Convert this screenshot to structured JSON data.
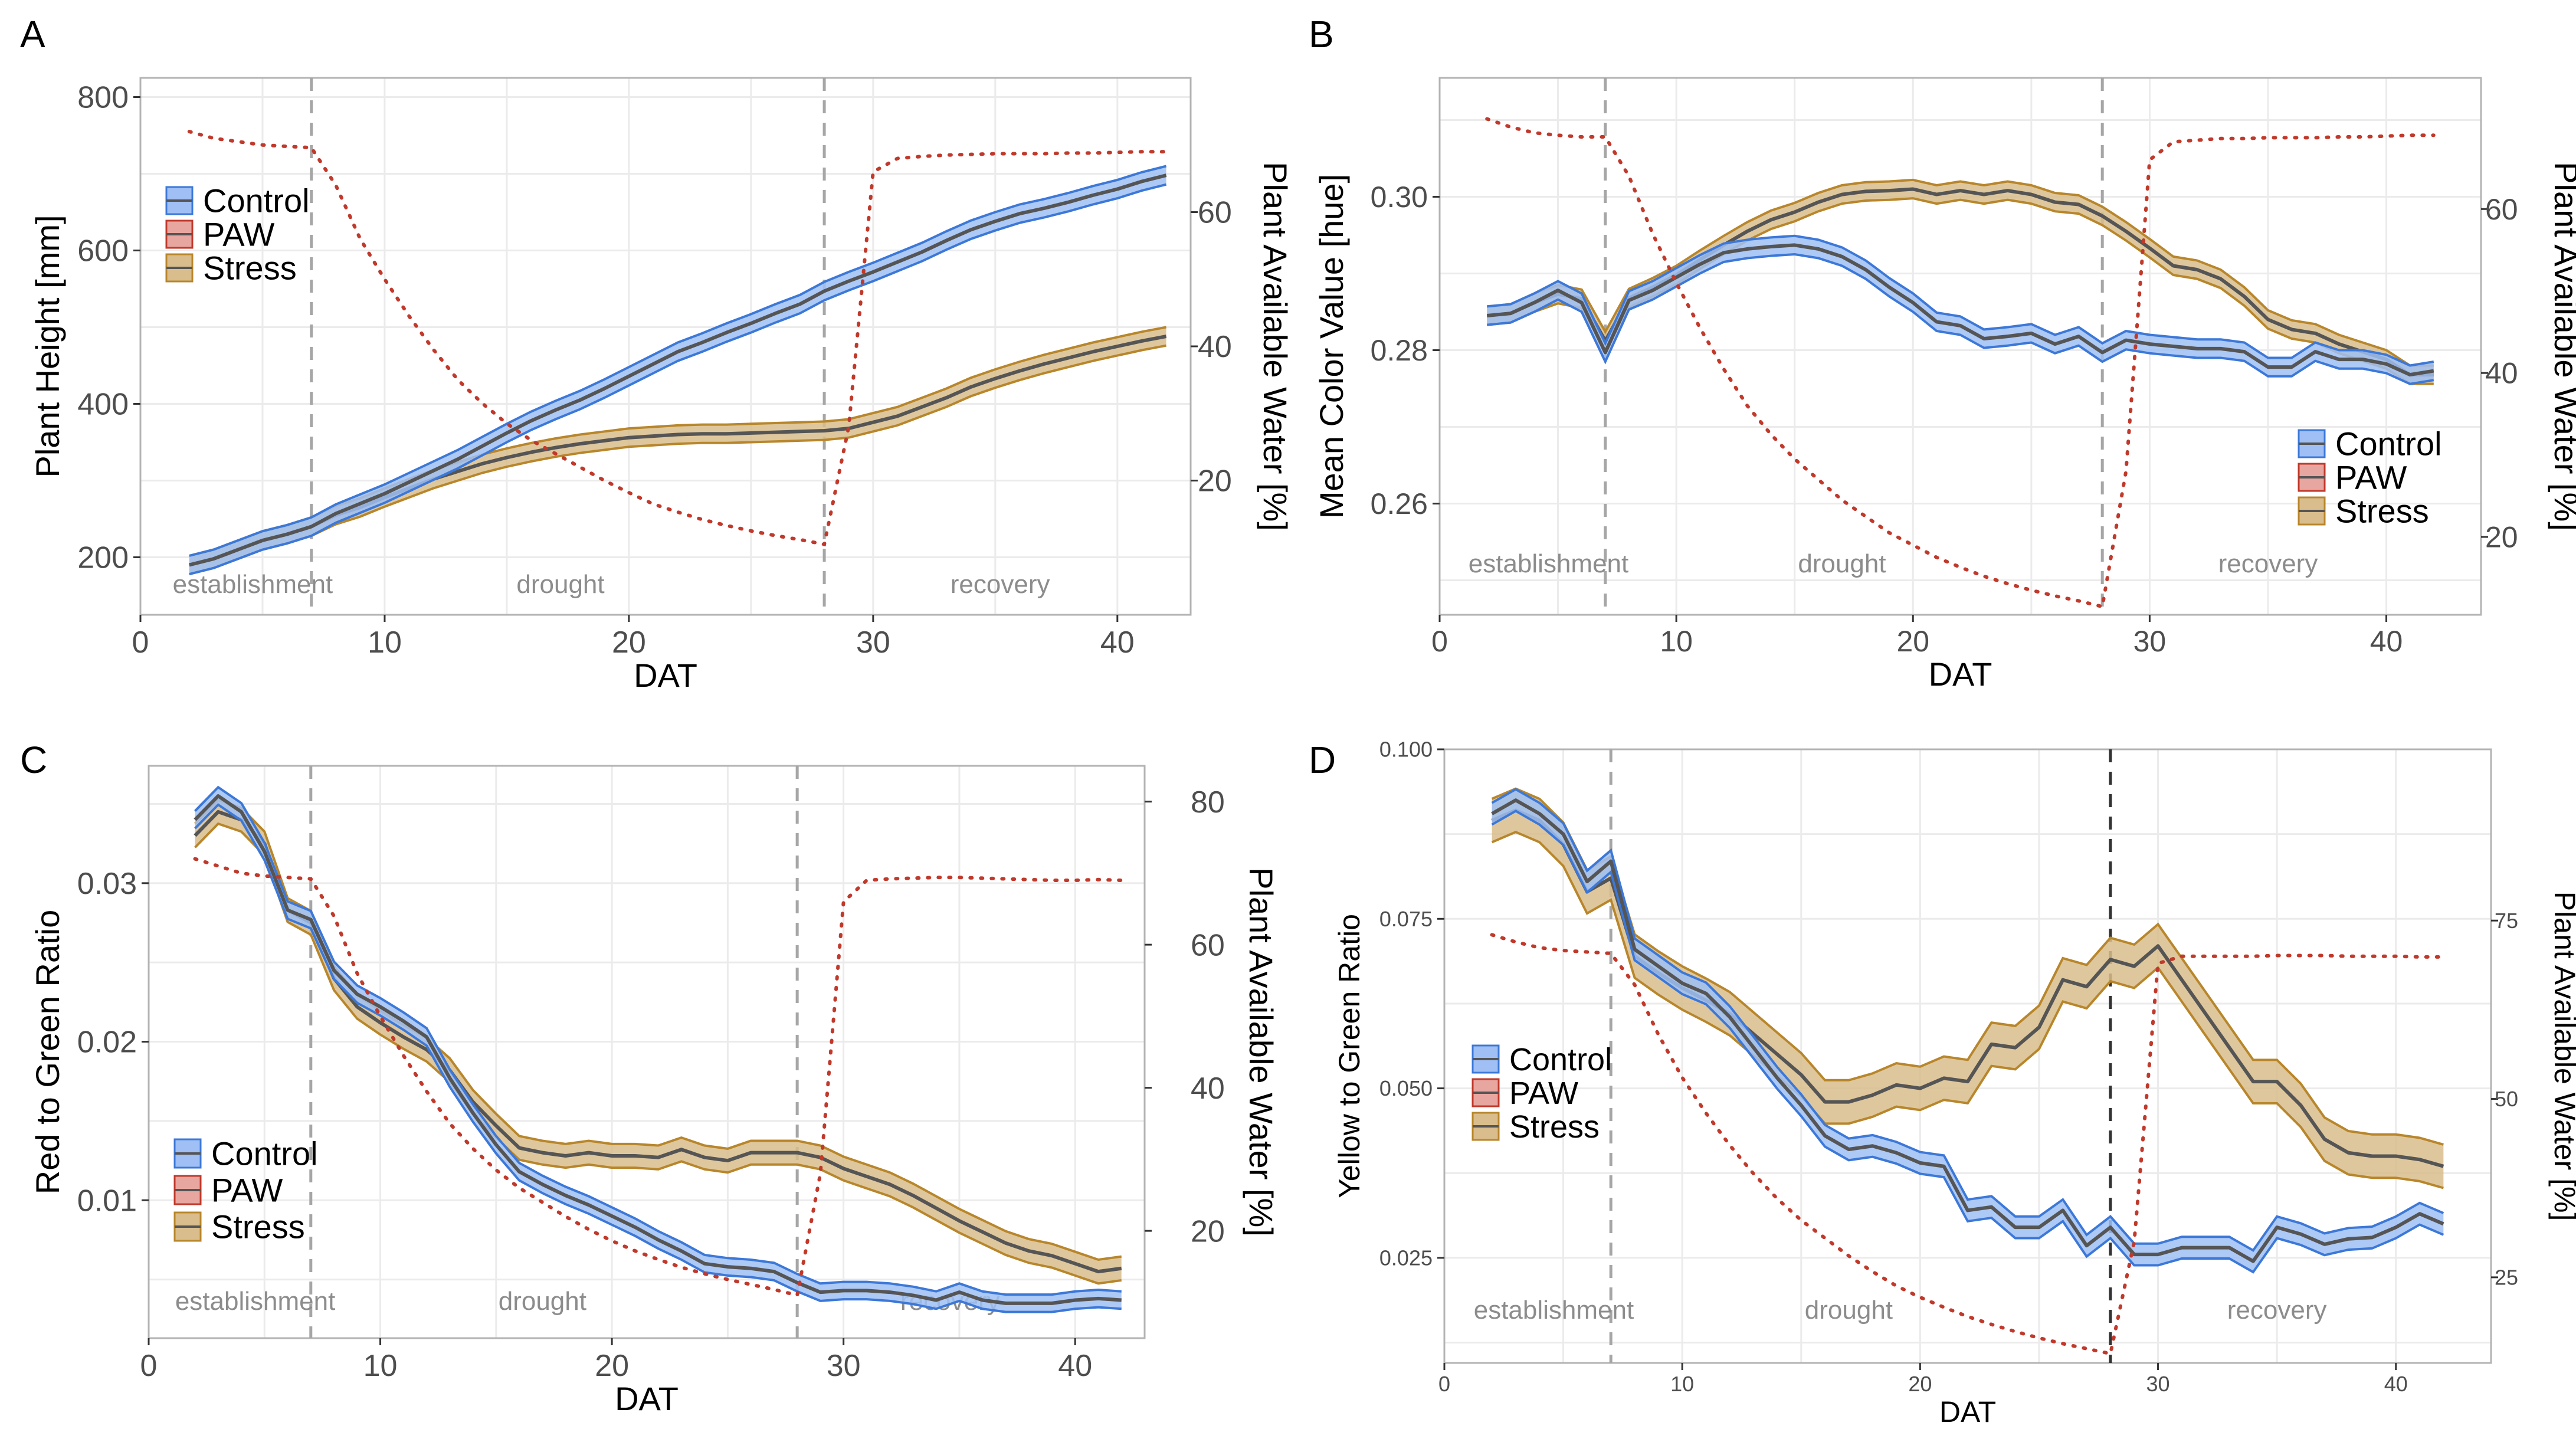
{
  "colors": {
    "control_fill": "#9fbff5",
    "control_edge": "#3c78d8",
    "stress_fill": "#d9bd8c",
    "stress_edge": "#b8862b",
    "paw_fill": "#e8a6a0",
    "paw_edge": "#c0392b",
    "mean_line": "#555555"
  },
  "chart_data": [
    {
      "id": "A",
      "type": "line",
      "panel_label": "A",
      "xlabel": "DAT",
      "ylabel": "Plant Height [mm]",
      "ylabel_right": "Plant Available Water [%]",
      "xlim": [
        0,
        43
      ],
      "ylim": [
        125,
        825
      ],
      "ylim_right": [
        0,
        80
      ],
      "xticks": [
        0,
        10,
        20,
        30,
        40
      ],
      "yticks": [
        200,
        400,
        600,
        800
      ],
      "yticks_right": [
        20,
        40,
        60
      ],
      "vlines": [
        7,
        28
      ],
      "phases": [
        {
          "label": "establishment",
          "x": 4.6
        },
        {
          "label": "drought",
          "x": 17.2
        },
        {
          "label": "recovery",
          "x": 35.2
        }
      ],
      "legend": [
        "Control",
        "PAW",
        "Stress"
      ],
      "legend_position": "top-left",
      "x": [
        2,
        3,
        4,
        5,
        6,
        7,
        8,
        9,
        10,
        11,
        12,
        13,
        14,
        15,
        16,
        17,
        18,
        19,
        20,
        21,
        22,
        23,
        24,
        25,
        26,
        27,
        28,
        29,
        30,
        31,
        32,
        33,
        34,
        35,
        36,
        37,
        38,
        39,
        40,
        41,
        42
      ],
      "series": [
        {
          "name": "Control",
          "values": [
            190,
            198,
            210,
            222,
            230,
            240,
            257,
            270,
            283,
            298,
            313,
            328,
            345,
            362,
            378,
            392,
            405,
            420,
            436,
            452,
            468,
            480,
            493,
            505,
            518,
            530,
            547,
            560,
            572,
            585,
            598,
            613,
            627,
            638,
            648,
            655,
            663,
            672,
            680,
            690,
            698
          ],
          "band": 12
        },
        {
          "name": "Stress",
          "values": [
            190,
            198,
            210,
            222,
            230,
            240,
            255,
            265,
            278,
            290,
            302,
            312,
            322,
            330,
            337,
            343,
            348,
            352,
            356,
            358,
            360,
            361,
            361,
            362,
            363,
            364,
            365,
            368,
            376,
            384,
            396,
            408,
            422,
            433,
            443,
            452,
            460,
            468,
            475,
            482,
            488
          ],
          "band": 12
        },
        {
          "name": "PAW",
          "values": [
            72,
            71,
            70.5,
            70,
            69.8,
            69.6,
            64,
            56,
            50,
            44.5,
            39.5,
            35,
            31.5,
            28.5,
            26,
            24,
            22,
            20,
            18.2,
            16.5,
            15.3,
            14.2,
            13.3,
            12.5,
            11.8,
            11.2,
            10.5,
            28,
            66,
            68,
            68.3,
            68.5,
            68.6,
            68.7,
            68.7,
            68.7,
            68.8,
            68.8,
            68.9,
            69,
            69
          ]
        }
      ]
    },
    {
      "id": "B",
      "type": "line",
      "panel_label": "B",
      "xlabel": "DAT",
      "ylabel": "Mean Color Value [hue]",
      "ylabel_right": "Plant Available Water [%]",
      "xlim": [
        0,
        44
      ],
      "ylim": [
        0.2455,
        0.3155
      ],
      "ylim_right": [
        10.5,
        76
      ],
      "xticks": [
        0,
        10,
        20,
        30,
        40
      ],
      "yticks": [
        0.26,
        0.28,
        0.3
      ],
      "ytick_labels": [
        "0.26",
        "0.28",
        "0.30"
      ],
      "yticks_right": [
        20,
        40,
        60
      ],
      "vlines": [
        7,
        28
      ],
      "phases": [
        {
          "label": "establishment",
          "x": 4.6
        },
        {
          "label": "drought",
          "x": 17
        },
        {
          "label": "recovery",
          "x": 35
        }
      ],
      "legend": [
        "Control",
        "PAW",
        "Stress"
      ],
      "legend_position": "bottom-right",
      "x": [
        2,
        3,
        4,
        5,
        6,
        7,
        8,
        9,
        10,
        11,
        12,
        13,
        14,
        15,
        16,
        17,
        18,
        19,
        20,
        21,
        22,
        23,
        24,
        25,
        26,
        27,
        28,
        29,
        30,
        31,
        32,
        33,
        34,
        35,
        36,
        37,
        38,
        39,
        40,
        41,
        42
      ],
      "series": [
        {
          "name": "Control",
          "values": [
            0.2845,
            0.2848,
            0.2862,
            0.2878,
            0.2862,
            0.2797,
            0.2865,
            0.2878,
            0.2895,
            0.2912,
            0.2927,
            0.2932,
            0.2935,
            0.2937,
            0.2932,
            0.2922,
            0.2905,
            0.2882,
            0.2862,
            0.2837,
            0.2832,
            0.2815,
            0.2818,
            0.2822,
            0.2808,
            0.2818,
            0.2797,
            0.2813,
            0.2808,
            0.2805,
            0.2802,
            0.2802,
            0.2798,
            0.2778,
            0.2778,
            0.2798,
            0.2788,
            0.2788,
            0.2782,
            0.2768,
            0.2773
          ],
          "band": 0.0012
        },
        {
          "name": "Stress",
          "values": [
            0.2845,
            0.2848,
            0.2862,
            0.2873,
            0.2867,
            0.2812,
            0.2868,
            0.2882,
            0.2898,
            0.2918,
            0.2937,
            0.2955,
            0.297,
            0.298,
            0.2993,
            0.3003,
            0.3007,
            0.3008,
            0.301,
            0.3003,
            0.3008,
            0.3003,
            0.3008,
            0.3003,
            0.2993,
            0.299,
            0.2975,
            0.2955,
            0.2933,
            0.291,
            0.2905,
            0.2893,
            0.287,
            0.284,
            0.2827,
            0.2822,
            0.2808,
            0.2798,
            0.2788,
            0.2768,
            0.2768
          ],
          "band": 0.0012
        },
        {
          "name": "PAW",
          "values": [
            71,
            70,
            69.3,
            69,
            68.8,
            68.8,
            64,
            57,
            51,
            45.5,
            40.5,
            36,
            32.5,
            29.5,
            27,
            24.5,
            22.5,
            20.5,
            19,
            17.5,
            16.3,
            15.2,
            14.3,
            13.5,
            12.8,
            12.2,
            11.5,
            28,
            66,
            68.2,
            68.4,
            68.6,
            68.6,
            68.7,
            68.7,
            68.7,
            68.8,
            68.8,
            68.9,
            69,
            69
          ]
        }
      ]
    },
    {
      "id": "C",
      "type": "line",
      "panel_label": "C",
      "xlabel": "DAT",
      "ylabel": "Red to Green Ratio",
      "ylabel_right": "Plant Available Water [%]",
      "xlim": [
        0,
        43
      ],
      "ylim": [
        0.0013,
        0.0374
      ],
      "ylim_right": [
        5,
        85
      ],
      "xticks": [
        0,
        10,
        20,
        30,
        40
      ],
      "yticks": [
        0.01,
        0.02,
        0.03
      ],
      "ytick_labels": [
        "0.01",
        "0.02",
        "0.03"
      ],
      "yticks_right": [
        20,
        40,
        60,
        80
      ],
      "vlines": [
        7,
        28
      ],
      "phases": [
        {
          "label": "establishment",
          "x": 4.6
        },
        {
          "label": "drought",
          "x": 17
        },
        {
          "label": "recovery",
          "x": 34.6
        }
      ],
      "legend": [
        "Control",
        "PAW",
        "Stress"
      ],
      "legend_position": "bottom-left",
      "x": [
        2,
        3,
        4,
        5,
        6,
        7,
        8,
        9,
        10,
        11,
        12,
        13,
        14,
        15,
        16,
        17,
        18,
        19,
        20,
        21,
        22,
        23,
        24,
        25,
        26,
        27,
        28,
        29,
        30,
        31,
        32,
        33,
        34,
        35,
        36,
        37,
        38,
        39,
        40,
        41,
        42
      ],
      "series": [
        {
          "name": "Control",
          "values": [
            0.034,
            0.0355,
            0.0345,
            0.032,
            0.0283,
            0.0277,
            0.0245,
            0.023,
            0.0222,
            0.0213,
            0.0203,
            0.0177,
            0.0155,
            0.0135,
            0.0118,
            0.011,
            0.0103,
            0.0097,
            0.009,
            0.0083,
            0.0075,
            0.0068,
            0.006,
            0.0058,
            0.0057,
            0.0055,
            0.0048,
            0.0042,
            0.0043,
            0.0043,
            0.0042,
            0.004,
            0.0037,
            0.0042,
            0.0037,
            0.0035,
            0.0035,
            0.0035,
            0.0037,
            0.0038,
            0.0037
          ],
          "band": 0.00055
        },
        {
          "name": "Stress",
          "values": [
            0.033,
            0.0345,
            0.034,
            0.0325,
            0.0283,
            0.0275,
            0.024,
            0.0222,
            0.0212,
            0.0203,
            0.0195,
            0.0182,
            0.0162,
            0.0147,
            0.0133,
            0.013,
            0.0128,
            0.013,
            0.0128,
            0.0128,
            0.0127,
            0.0132,
            0.0127,
            0.0125,
            0.013,
            0.013,
            0.013,
            0.0127,
            0.012,
            0.0115,
            0.011,
            0.0103,
            0.0095,
            0.0087,
            0.008,
            0.0073,
            0.0068,
            0.0065,
            0.006,
            0.0055,
            0.0057
          ],
          "band": 0.00075
        },
        {
          "name": "PAW",
          "values": [
            72,
            71,
            70,
            69.6,
            69.4,
            69.2,
            64,
            56,
            50,
            44.5,
            39.5,
            35,
            31.5,
            28.5,
            26,
            24,
            22,
            20.2,
            18.6,
            17.2,
            16,
            14.9,
            14,
            13.2,
            12.5,
            11.8,
            11,
            28,
            66,
            69,
            69.2,
            69.3,
            69.4,
            69.4,
            69.3,
            69.2,
            69.1,
            69,
            69,
            69.1,
            69
          ]
        }
      ]
    },
    {
      "id": "D",
      "type": "line",
      "panel_label": "D",
      "xlabel": "DAT",
      "ylabel": "Yellow to Green Ratio",
      "ylabel_right": "Plant Available Water [%]",
      "xlim": [
        0,
        44
      ],
      "ylim": [
        0.0095,
        0.1
      ],
      "ylim_right": [
        13,
        99
      ],
      "xticks": [
        0,
        10,
        20,
        30,
        40
      ],
      "yticks": [
        0.025,
        0.05,
        0.075,
        0.1
      ],
      "ytick_labels": [
        "0.025",
        "0.050",
        "0.075",
        "0.100"
      ],
      "yticks_right": [
        25,
        50,
        75
      ],
      "vlines": [
        7,
        28
      ],
      "vline_dark_index": 1,
      "phases": [
        {
          "label": "establishment",
          "x": 4.6
        },
        {
          "label": "drought",
          "x": 17
        },
        {
          "label": "recovery",
          "x": 35
        }
      ],
      "legend": [
        "Control",
        "PAW",
        "Stress"
      ],
      "legend_position": "center-left",
      "x": [
        2,
        3,
        4,
        5,
        6,
        7,
        8,
        9,
        10,
        11,
        12,
        13,
        14,
        15,
        16,
        17,
        18,
        19,
        20,
        21,
        22,
        23,
        24,
        25,
        26,
        27,
        28,
        29,
        30,
        31,
        32,
        33,
        34,
        35,
        36,
        37,
        38,
        39,
        40,
        41,
        42
      ],
      "series": [
        {
          "name": "Control",
          "values": [
            0.0905,
            0.0925,
            0.0905,
            0.0875,
            0.0805,
            0.0835,
            0.0705,
            0.068,
            0.0655,
            0.064,
            0.0605,
            0.056,
            0.0515,
            0.0475,
            0.043,
            0.041,
            0.0415,
            0.0405,
            0.039,
            0.0385,
            0.032,
            0.0325,
            0.0295,
            0.0295,
            0.032,
            0.0268,
            0.0295,
            0.0255,
            0.0255,
            0.0265,
            0.0265,
            0.0265,
            0.0245,
            0.0295,
            0.0285,
            0.027,
            0.0278,
            0.028,
            0.0295,
            0.0315,
            0.03
          ],
          "band": 0.0016
        },
        {
          "name": "Stress",
          "values": [
            0.0895,
            0.091,
            0.0895,
            0.086,
            0.079,
            0.081,
            0.0695,
            0.067,
            0.0648,
            0.063,
            0.061,
            0.058,
            0.055,
            0.052,
            0.048,
            0.048,
            0.049,
            0.0505,
            0.05,
            0.0515,
            0.051,
            0.0565,
            0.056,
            0.059,
            0.066,
            0.065,
            0.069,
            0.068,
            0.071,
            0.066,
            0.061,
            0.056,
            0.051,
            0.051,
            0.0475,
            0.0425,
            0.0405,
            0.04,
            0.04,
            0.0395,
            0.0385
          ],
          "band": 0.0032
        },
        {
          "name": "PAW",
          "values": [
            73,
            72,
            71.2,
            70.8,
            70.6,
            70.4,
            66,
            59,
            53,
            48,
            43.5,
            39.5,
            36,
            33,
            30.5,
            28,
            25.8,
            23.8,
            22.2,
            20.8,
            19.5,
            18.4,
            17.4,
            16.5,
            15.7,
            15,
            14.3,
            30,
            69,
            70,
            70,
            70,
            70,
            70.1,
            70.1,
            70.1,
            70,
            70,
            70,
            69.9,
            69.9
          ]
        }
      ]
    }
  ]
}
